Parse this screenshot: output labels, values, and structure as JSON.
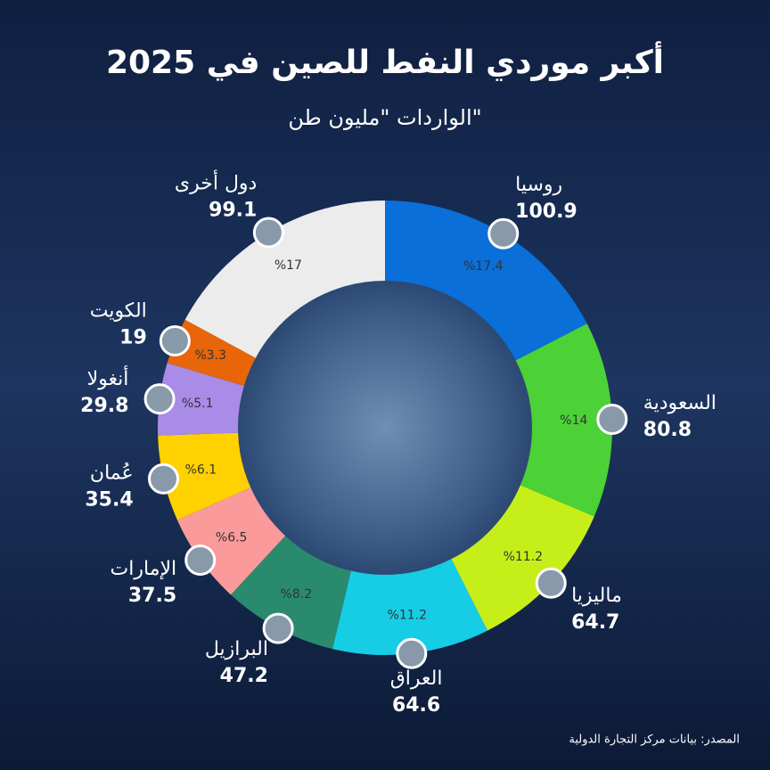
{
  "chart_data": {
    "type": "pie",
    "title": "أكبر موردي النفط للصين في 2025",
    "subtitle": "الواردات \"مليون طن\"",
    "source": "المصدر: بيانات مركز التجارة الدولية",
    "categories": [
      "روسيا",
      "السعودية",
      "ماليزيا",
      "العراق",
      "البرازيل",
      "الإمارات",
      "عُمان",
      "أنغولا",
      "الكويت",
      "دول أخرى"
    ],
    "values": [
      100.9,
      80.8,
      64.7,
      64.6,
      47.2,
      37.5,
      35.4,
      29.8,
      19,
      99.1
    ],
    "percent_labels": [
      "%17.4",
      "%14",
      "%11.2",
      "%11.2",
      "%8.2",
      "%6.5",
      "%6.1",
      "%5.1",
      "%3.3",
      "%17"
    ],
    "colors": [
      "#0a6fd8",
      "#4cd137",
      "#c6ef1a",
      "#17cde6",
      "#2a8a6e",
      "#fb9a9a",
      "#ffd100",
      "#a98be8",
      "#e8650a",
      "#ececec"
    ]
  }
}
